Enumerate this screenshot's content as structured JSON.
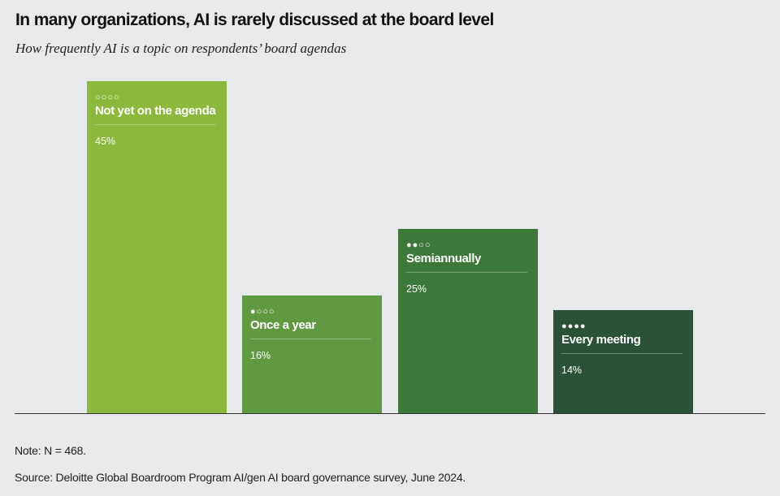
{
  "title": "In many organizations, AI is rarely discussed at the board level",
  "subtitle": "How frequently AI is a topic on respondents’ board agendas",
  "chart_data": {
    "type": "bar",
    "categories": [
      "Not yet on the agenda",
      "Once a year",
      "Semiannually",
      "Every meeting"
    ],
    "values": [
      45,
      16,
      25,
      14
    ],
    "value_labels": [
      "45%",
      "16%",
      "25%",
      "14%"
    ],
    "frequency_dots": [
      "○○○○",
      "●○○○",
      "●●○○",
      "●●●●"
    ],
    "colors": [
      "#8cb83e",
      "#5f9a40",
      "#3b7839",
      "#2b5237"
    ],
    "ylim": [
      0,
      45
    ],
    "grid": false,
    "title": "In many organizations, AI is rarely discussed at the board level"
  },
  "note": "Note: N = 468.",
  "source": "Source: Deloitte Global Boardroom Program AI/gen AI board governance survey, June 2024."
}
